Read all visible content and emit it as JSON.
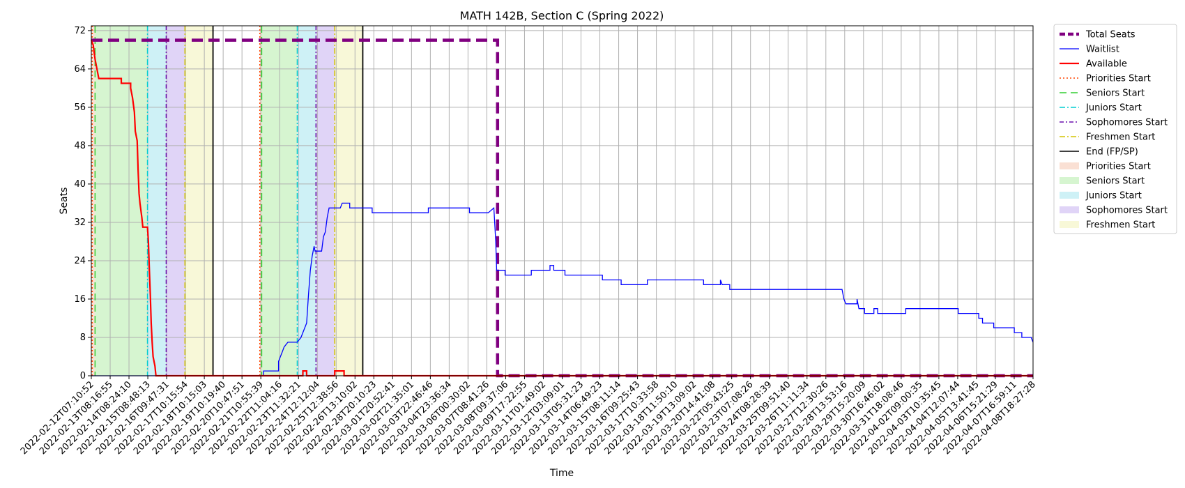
{
  "chart_data": {
    "type": "line",
    "title": "MATH 142B, Section C (Spring 2022)",
    "xlabel": "Time",
    "ylabel": "Seats",
    "ylim": [
      0,
      73
    ],
    "yticks": [
      0,
      8,
      16,
      24,
      32,
      40,
      48,
      56,
      64,
      72
    ],
    "grid": true,
    "legend_position": "outside-right",
    "x_tick_labels": [
      "2022-02-12T07:10:52",
      "2022-02-13T08:16:55",
      "2022-02-14T08:24:10",
      "2022-02-15T08:48:13",
      "2022-02-16T09:47:31",
      "2022-02-17T10:15:54",
      "2022-02-18T10:15:03",
      "2022-02-19T10:19:40",
      "2022-02-20T10:47:51",
      "2022-02-21T10:55:39",
      "2022-02-22T11:04:16",
      "2022-02-23T11:32:21",
      "2022-02-24T12:12:04",
      "2022-02-25T12:38:56",
      "2022-02-26T13:10:02",
      "2022-02-28T20:10:23",
      "2022-03-01T20:52:41",
      "2022-03-02T21:35:01",
      "2022-03-03T22:46:46",
      "2022-03-04T23:36:34",
      "2022-03-06T00:30:02",
      "2022-03-07T08:41:26",
      "2022-03-08T09:37:06",
      "2022-03-09T17:22:55",
      "2022-03-11T01:49:02",
      "2022-03-12T03:09:01",
      "2022-03-13T05:31:23",
      "2022-03-14T06:49:23",
      "2022-03-15T08:11:14",
      "2022-03-16T09:25:43",
      "2022-03-17T10:33:58",
      "2022-03-18T11:50:10",
      "2022-03-19T13:09:02",
      "2022-03-20T14:41:08",
      "2022-03-22T05:43:25",
      "2022-03-23T07:08:26",
      "2022-03-24T08:28:39",
      "2022-03-25T09:51:40",
      "2022-03-26T11:11:34",
      "2022-03-27T12:30:26",
      "2022-03-28T13:53:16",
      "2022-03-29T15:20:09",
      "2022-03-30T16:46:02",
      "2022-03-31T18:08:46",
      "2022-04-02T09:00:35",
      "2022-04-03T10:35:45",
      "2022-04-04T12:07:44",
      "2022-04-05T13:41:45",
      "2022-04-06T15:21:29",
      "2022-04-07T16:59:11",
      "2022-04-08T18:27:28"
    ],
    "x_range_ticks": [
      0,
      50.3
    ],
    "series": [
      {
        "name": "Total Seats",
        "style": "dashed",
        "color": "#800080",
        "points": [
          [
            0,
            70
          ],
          [
            21.7,
            70
          ],
          [
            21.7,
            0
          ],
          [
            50.3,
            0
          ]
        ]
      },
      {
        "name": "Waitlist",
        "style": "solid",
        "color": "#0000ff",
        "points": [
          [
            0,
            0
          ],
          [
            9.2,
            0
          ],
          [
            9.2,
            1
          ],
          [
            10.0,
            1
          ],
          [
            10.0,
            3
          ],
          [
            10.2,
            5
          ],
          [
            10.3,
            6
          ],
          [
            10.5,
            7
          ],
          [
            11.0,
            7
          ],
          [
            11.2,
            8
          ],
          [
            11.3,
            9
          ],
          [
            11.5,
            11
          ],
          [
            11.6,
            17
          ],
          [
            11.7,
            22
          ],
          [
            11.8,
            25
          ],
          [
            11.9,
            27
          ],
          [
            11.95,
            26
          ],
          [
            12.3,
            26
          ],
          [
            12.4,
            29
          ],
          [
            12.5,
            30
          ],
          [
            12.6,
            33
          ],
          [
            12.7,
            35
          ],
          [
            13.3,
            35
          ],
          [
            13.4,
            36
          ],
          [
            13.8,
            36
          ],
          [
            13.8,
            35
          ],
          [
            15.0,
            35
          ],
          [
            15.0,
            34
          ],
          [
            18.0,
            34
          ],
          [
            18.0,
            35
          ],
          [
            20.2,
            35
          ],
          [
            20.2,
            34
          ],
          [
            21.2,
            34
          ],
          [
            21.5,
            35
          ],
          [
            21.6,
            28
          ],
          [
            21.65,
            22
          ],
          [
            22.1,
            22
          ],
          [
            22.1,
            21
          ],
          [
            23.5,
            21
          ],
          [
            23.5,
            22
          ],
          [
            24.5,
            22
          ],
          [
            24.5,
            23
          ],
          [
            24.7,
            23
          ],
          [
            24.7,
            22
          ],
          [
            25.3,
            22
          ],
          [
            25.3,
            21
          ],
          [
            27.3,
            21
          ],
          [
            27.3,
            20
          ],
          [
            28.3,
            20
          ],
          [
            28.3,
            19
          ],
          [
            29.7,
            19
          ],
          [
            29.7,
            20
          ],
          [
            32.7,
            20
          ],
          [
            32.7,
            19
          ],
          [
            33.6,
            19
          ],
          [
            33.6,
            20
          ],
          [
            33.7,
            19
          ],
          [
            34.1,
            19
          ],
          [
            34.1,
            18
          ],
          [
            40.1,
            18
          ],
          [
            40.2,
            16
          ],
          [
            40.3,
            15
          ],
          [
            40.9,
            15
          ],
          [
            40.9,
            16
          ],
          [
            41.0,
            14
          ],
          [
            41.3,
            14
          ],
          [
            41.3,
            13
          ],
          [
            41.8,
            13
          ],
          [
            41.8,
            14
          ],
          [
            42.0,
            14
          ],
          [
            42.0,
            13
          ],
          [
            43.5,
            13
          ],
          [
            43.5,
            14
          ],
          [
            46.3,
            14
          ],
          [
            46.3,
            13
          ],
          [
            47.4,
            13
          ],
          [
            47.4,
            12
          ],
          [
            47.6,
            12
          ],
          [
            47.6,
            11
          ],
          [
            48.2,
            11
          ],
          [
            48.2,
            10
          ],
          [
            49.3,
            10
          ],
          [
            49.3,
            9
          ],
          [
            49.7,
            9
          ],
          [
            49.7,
            8
          ],
          [
            50.2,
            8
          ],
          [
            50.3,
            7
          ]
        ]
      },
      {
        "name": "Available",
        "style": "solid",
        "color": "#ff0000",
        "points": [
          [
            0,
            70
          ],
          [
            0.1,
            69
          ],
          [
            0.2,
            66
          ],
          [
            0.3,
            64
          ],
          [
            0.4,
            62
          ],
          [
            1.6,
            62
          ],
          [
            1.6,
            61
          ],
          [
            2.1,
            61
          ],
          [
            2.1,
            60
          ],
          [
            2.2,
            58
          ],
          [
            2.3,
            55
          ],
          [
            2.35,
            51
          ],
          [
            2.45,
            49
          ],
          [
            2.5,
            43
          ],
          [
            2.55,
            38
          ],
          [
            2.6,
            36
          ],
          [
            2.7,
            33
          ],
          [
            2.75,
            31
          ],
          [
            3.0,
            31
          ],
          [
            3.05,
            28
          ],
          [
            3.1,
            22
          ],
          [
            3.15,
            17
          ],
          [
            3.2,
            11
          ],
          [
            3.25,
            7
          ],
          [
            3.3,
            4
          ],
          [
            3.4,
            2
          ],
          [
            3.45,
            0
          ],
          [
            11.3,
            0
          ],
          [
            11.3,
            1
          ],
          [
            11.5,
            1
          ],
          [
            11.5,
            0
          ],
          [
            13.0,
            0
          ],
          [
            13.0,
            1
          ],
          [
            13.5,
            1
          ],
          [
            13.5,
            0
          ],
          [
            50.3,
            0
          ]
        ]
      }
    ],
    "phase_lines": [
      {
        "name": "Priorities Start",
        "style": "dotted",
        "color": "#ff4500",
        "x": [
          0.05,
          9.0
        ]
      },
      {
        "name": "Seniors Start",
        "style": "dashed",
        "color": "#32cd32",
        "x": [
          0.2,
          9.1
        ]
      },
      {
        "name": "Juniors Start",
        "style": "dashdot",
        "color": "#00ced1",
        "x": [
          3.0,
          11.0
        ]
      },
      {
        "name": "Sophomores Start",
        "style": "dashdotdot",
        "color": "#6a0dad",
        "x": [
          4.0,
          12.0
        ]
      },
      {
        "name": "Freshmen Start",
        "style": "dashdot",
        "color": "#d4c400",
        "x": [
          5.0,
          13.0
        ]
      },
      {
        "name": "End (FP/SP)",
        "style": "solid",
        "color": "#000000",
        "x": [
          6.5,
          14.5
        ]
      }
    ],
    "phase_bands": [
      {
        "name": "Priorities Start",
        "color": "#f5c6b0",
        "ranges": [
          [
            0.05,
            0.2
          ],
          [
            9.0,
            9.1
          ]
        ]
      },
      {
        "name": "Seniors Start",
        "color": "#b4ecaa",
        "ranges": [
          [
            0.2,
            3.0
          ],
          [
            9.1,
            11.0
          ]
        ]
      },
      {
        "name": "Juniors Start",
        "color": "#a6e6ee",
        "ranges": [
          [
            3.0,
            4.0
          ],
          [
            11.0,
            12.0
          ]
        ]
      },
      {
        "name": "Sophomores Start",
        "color": "#c7b0f0",
        "ranges": [
          [
            4.0,
            5.0
          ],
          [
            12.0,
            13.0
          ]
        ]
      },
      {
        "name": "Freshmen Start",
        "color": "#f3f3b8",
        "ranges": [
          [
            5.0,
            6.5
          ],
          [
            13.0,
            14.5
          ]
        ]
      }
    ]
  }
}
